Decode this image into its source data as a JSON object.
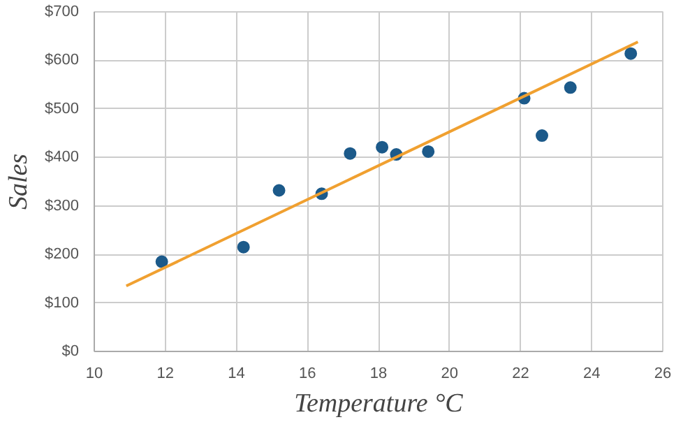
{
  "chart_data": {
    "type": "scatter",
    "xlabel": "Temperature °C",
    "ylabel": "Sales",
    "xlim": [
      10,
      26
    ],
    "xticks": [
      10,
      12,
      14,
      16,
      18,
      20,
      22,
      24,
      26
    ],
    "ylim": [
      0,
      700
    ],
    "yticks": [
      {
        "value": 0,
        "label": "$0"
      },
      {
        "value": 100,
        "label": "$100"
      },
      {
        "value": 200,
        "label": "$200"
      },
      {
        "value": 300,
        "label": "$300"
      },
      {
        "value": 400,
        "label": "$400"
      },
      {
        "value": 500,
        "label": "$500"
      },
      {
        "value": 600,
        "label": "$600"
      },
      {
        "value": 700,
        "label": "$700"
      }
    ],
    "grid": true,
    "series": [
      {
        "marker": "circle",
        "color": "#1c5a8a",
        "x": [
          14.2,
          16.4,
          11.9,
          15.2,
          18.5,
          22.1,
          19.4,
          25.1,
          23.4,
          18.1,
          22.6,
          17.2
        ],
        "values": [
          215,
          325,
          185,
          332,
          406,
          522,
          412,
          614,
          544,
          421,
          445,
          408
        ]
      },
      {
        "type": "line",
        "color": "#f0a030",
        "x": [
          10.9,
          25.3
        ],
        "values": [
          135,
          638
        ]
      }
    ]
  }
}
